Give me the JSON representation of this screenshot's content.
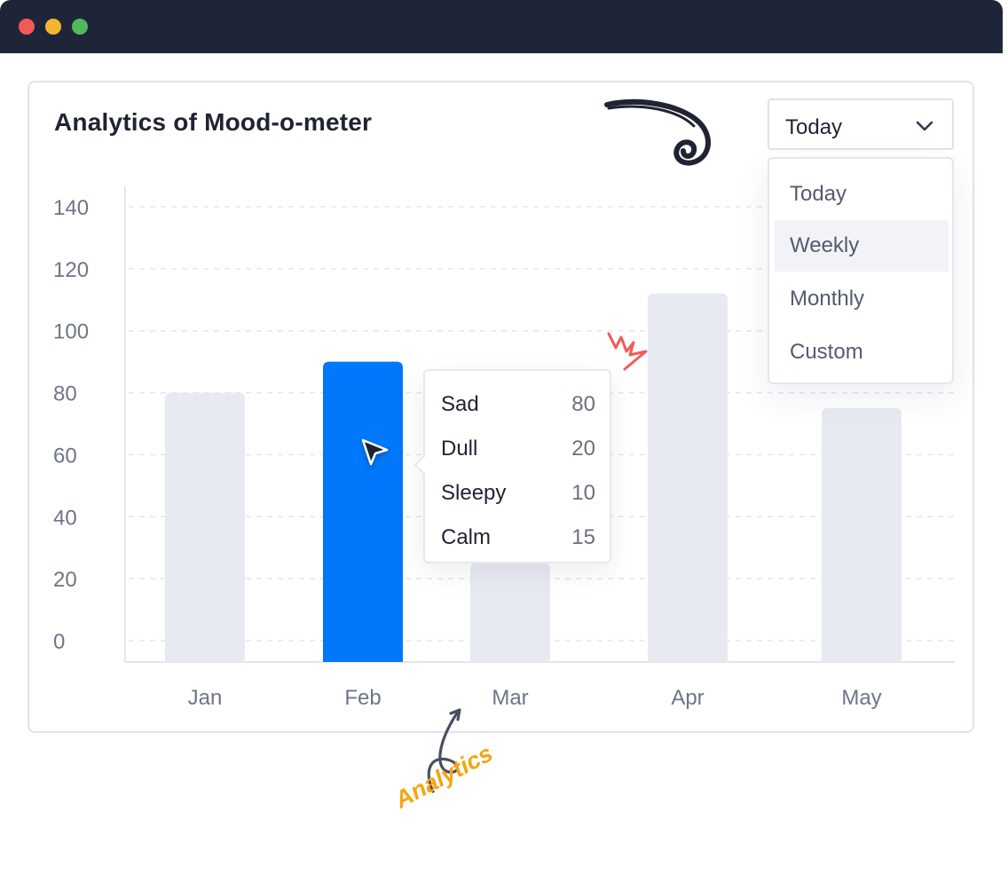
{
  "window": {
    "controls": [
      "close",
      "minimize",
      "maximize"
    ]
  },
  "card": {
    "title": "Analytics of Mood-o-meter"
  },
  "period_select": {
    "selected": "Today",
    "icon": "chevron-down-icon",
    "options": [
      "Today",
      "Weekly",
      "Monthly",
      "Custom"
    ],
    "highlighted": "Weekly"
  },
  "chart_data": {
    "type": "bar",
    "categories": [
      "Jan",
      "Feb",
      "Mar",
      "Apr",
      "May"
    ],
    "values": [
      80,
      90,
      25,
      112,
      75
    ],
    "highlighted_category": "Feb",
    "ylim": [
      0,
      140
    ],
    "y_ticks": [
      0,
      20,
      40,
      60,
      80,
      100,
      120,
      140
    ],
    "grid": true,
    "colors": {
      "bar": "#e8eaf1",
      "highlight": "#0177fb",
      "grid": "#e3e6ec",
      "axis": "#e3e6ec"
    }
  },
  "tooltip": {
    "rows": [
      {
        "label": "Sad",
        "value": "80"
      },
      {
        "label": "Dull",
        "value": "20"
      },
      {
        "label": "Sleepy",
        "value": "10"
      },
      {
        "label": "Calm",
        "value": "15"
      }
    ]
  },
  "annotation": {
    "text": "Analytics",
    "color": "#f6a50f"
  }
}
